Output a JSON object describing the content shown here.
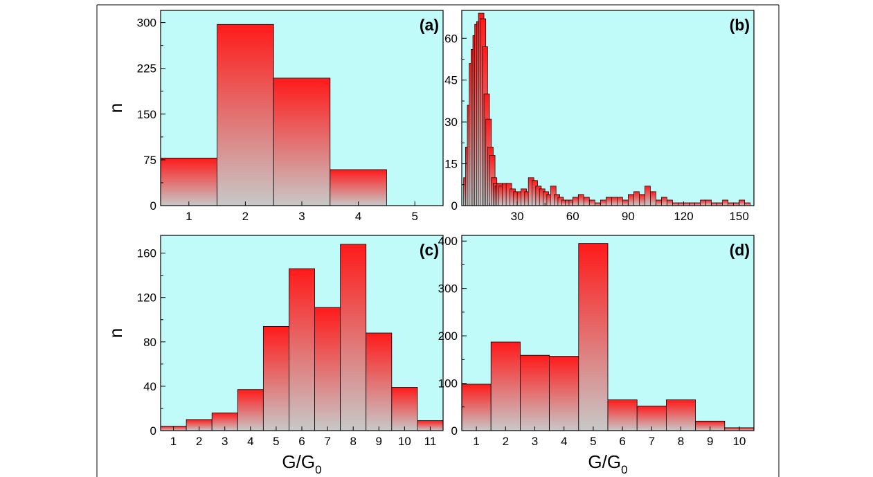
{
  "chart_data": [
    {
      "id": "a",
      "type": "bar",
      "panel_label": "(a)",
      "xlabel": "",
      "ylabel": "n",
      "categories": [
        "1",
        "2",
        "3",
        "4",
        "5"
      ],
      "values": [
        78,
        297,
        209,
        59,
        0
      ],
      "xlim": [
        0.5,
        5.5
      ],
      "ylim": [
        0,
        320
      ],
      "xticks": [
        1,
        2,
        3,
        4,
        5
      ],
      "yticks": [
        0,
        75,
        150,
        225,
        300
      ]
    },
    {
      "id": "b",
      "type": "bar",
      "panel_label": "(b)",
      "xlabel": "",
      "ylabel": "",
      "bin_width": 3,
      "x": [
        1,
        2,
        3,
        4,
        5,
        6,
        7,
        8,
        9,
        10,
        11,
        12,
        13,
        14,
        15,
        16,
        17,
        18,
        19,
        20,
        22,
        24,
        26,
        28,
        30,
        32,
        34,
        36,
        38,
        40,
        42,
        44,
        46,
        48,
        50,
        52,
        54,
        56,
        58,
        60,
        63,
        66,
        69,
        72,
        75,
        78,
        81,
        84,
        87,
        90,
        93,
        96,
        99,
        102,
        105,
        108,
        111,
        114,
        117,
        120,
        123,
        126,
        129,
        132,
        135,
        138,
        141,
        144,
        147,
        150,
        153
      ],
      "values": [
        10,
        21,
        36,
        51,
        56,
        61,
        65,
        66,
        69,
        67,
        57,
        40,
        31,
        21,
        18,
        10,
        8,
        7,
        8,
        7,
        8,
        8,
        6,
        5,
        5,
        6,
        5,
        10,
        9,
        7,
        6,
        5,
        4,
        7,
        4,
        3,
        2,
        2,
        2,
        3,
        4,
        3,
        2,
        1,
        2,
        3,
        3,
        3,
        2,
        4,
        5,
        4,
        7,
        5,
        2,
        3,
        2,
        1,
        1,
        1,
        1,
        1,
        2,
        2,
        1,
        1,
        2,
        1,
        1,
        2,
        1
      ],
      "xlim": [
        0,
        158
      ],
      "ylim": [
        0,
        70
      ],
      "xticks": [
        30,
        60,
        90,
        120,
        150
      ],
      "yticks": [
        0,
        15,
        30,
        45,
        60
      ]
    },
    {
      "id": "c",
      "type": "bar",
      "panel_label": "(c)",
      "xlabel": "G/G",
      "xlabel_sub": "0",
      "ylabel": "n",
      "categories": [
        "1",
        "2",
        "3",
        "4",
        "5",
        "6",
        "7",
        "8",
        "9",
        "10",
        "11"
      ],
      "values": [
        4,
        10,
        16,
        37,
        94,
        146,
        111,
        168,
        88,
        39,
        9
      ],
      "xlim": [
        0.5,
        11.5
      ],
      "ylim": [
        0,
        176
      ],
      "xticks": [
        1,
        2,
        3,
        4,
        5,
        6,
        7,
        8,
        9,
        10,
        11
      ],
      "yticks": [
        0,
        40,
        80,
        120,
        160
      ]
    },
    {
      "id": "d",
      "type": "bar",
      "panel_label": "(d)",
      "xlabel": "G/G",
      "xlabel_sub": "0",
      "ylabel": "",
      "categories": [
        "1",
        "2",
        "3",
        "4",
        "5",
        "6",
        "7",
        "8",
        "9",
        "10"
      ],
      "values": [
        98,
        187,
        159,
        157,
        395,
        65,
        52,
        65,
        20,
        6
      ],
      "xlim": [
        0.5,
        10.5
      ],
      "ylim": [
        0,
        412
      ],
      "xticks": [
        1,
        2,
        3,
        4,
        5,
        6,
        7,
        8,
        9,
        10
      ],
      "yticks": [
        0,
        100,
        200,
        300,
        400
      ]
    }
  ],
  "colors": {
    "plot_background": "#c0fbfa",
    "bar_top": "#ff1a1a",
    "bar_bottom": "#c8c8c8",
    "bar_outline": "#000000"
  }
}
